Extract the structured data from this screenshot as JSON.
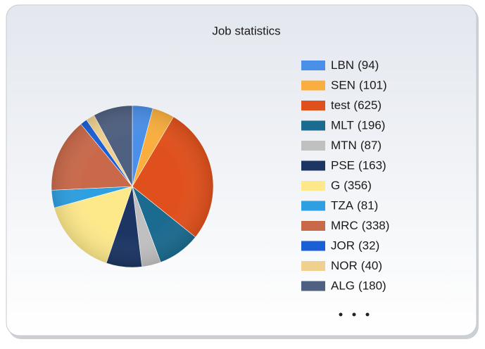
{
  "chart_data": {
    "type": "pie",
    "title": "Job statistics",
    "categories": [
      "LBN",
      "SEN",
      "test",
      "MLT",
      "MTN",
      "PSE",
      "G",
      "TZA",
      "MRC",
      "JOR",
      "NOR",
      "ALG"
    ],
    "values": [
      94,
      101,
      625,
      196,
      87,
      163,
      356,
      81,
      338,
      32,
      40,
      180
    ],
    "value_labels": [
      "(94)",
      "(101)",
      "(625)",
      "(196)",
      "(87)",
      "(163)",
      "(356)",
      "(81)",
      "(338)",
      "(32)",
      "(40)",
      "(180)"
    ],
    "colors": [
      "#4a8fe8",
      "#f9ae3f",
      "#e0501c",
      "#1b6a8f",
      "#c0c0c0",
      "#1c3563",
      "#fde88a",
      "#2e9fe0",
      "#c9694a",
      "#1a5fd6",
      "#efd08f",
      "#4f6080"
    ]
  }
}
